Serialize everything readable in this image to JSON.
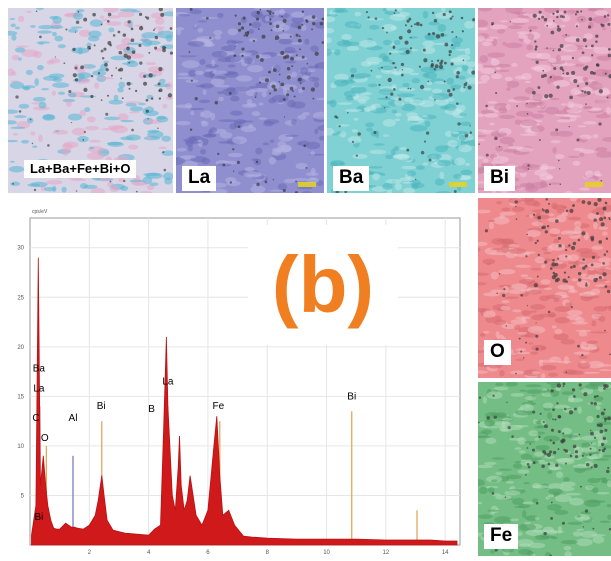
{
  "panel_label": "(b)",
  "maps": [
    {
      "id": "all",
      "label": "La+Ba+Fe+Bi+O",
      "base": "#d8d6e6",
      "accent": "#56b6d4",
      "accent2": "#e6a6c6"
    },
    {
      "id": "la",
      "label": "La",
      "base": "#8f8fcf",
      "accent": "#6c6cb8",
      "accent2": "#b4b2e2"
    },
    {
      "id": "ba",
      "label": "Ba",
      "base": "#7fd1d4",
      "accent": "#4cb6bc",
      "accent2": "#bde8e8"
    },
    {
      "id": "bi",
      "label": "Bi",
      "base": "#e3a3bf",
      "accent": "#cc7fa0",
      "accent2": "#f2cadc"
    },
    {
      "id": "o",
      "label": "O",
      "base": "#ee8a8e",
      "accent": "#d76a70",
      "accent2": "#f6bcbf"
    },
    {
      "id": "fe",
      "label": "Fe",
      "base": "#74bd84",
      "accent": "#4e9e62",
      "accent2": "#aedcb8"
    }
  ],
  "chart_data": {
    "type": "line",
    "x_ticks": [
      "2",
      "4",
      "6",
      "8",
      "10",
      "12",
      "14"
    ],
    "y_ticks": [
      "5",
      "10",
      "15",
      "20",
      "25",
      "30"
    ],
    "y_unit": "cps/eV",
    "xlim": [
      0,
      14.5
    ],
    "ylim": [
      0,
      33
    ],
    "series": [
      {
        "x": [
          0.05,
          0.2,
          0.28,
          0.35,
          0.45,
          0.53,
          0.6,
          0.7,
          0.8,
          0.9,
          1.0,
          1.2,
          1.4,
          1.5,
          1.6,
          1.8,
          2.0,
          2.2,
          2.3,
          2.42,
          2.5,
          2.6,
          2.8,
          3.2,
          3.6,
          4.0,
          4.1,
          4.2,
          4.4,
          4.5,
          4.6,
          4.65,
          4.8,
          4.9,
          5.0,
          5.04,
          5.1,
          5.2,
          5.3,
          5.4,
          5.6,
          5.8,
          6.0,
          6.2,
          6.3,
          6.4,
          6.5,
          6.7,
          6.9,
          7.2,
          7.5,
          8.0,
          9.0,
          10.0,
          11.0,
          12.0,
          13.0,
          13.5,
          14.0,
          14.4
        ],
        "y": [
          1,
          4,
          29,
          6,
          9,
          6,
          4,
          2.5,
          1.7,
          1.6,
          1.6,
          2.2,
          1.8,
          1.8,
          1.7,
          1.6,
          2.0,
          3.0,
          4.5,
          7.0,
          5.0,
          2.5,
          1.5,
          1.2,
          1.1,
          1.0,
          1.3,
          1.6,
          2.0,
          11.0,
          21.0,
          14.0,
          5.0,
          3.5,
          8.0,
          11.0,
          6.0,
          3.5,
          4.5,
          7.0,
          3.0,
          2.0,
          3.5,
          10.0,
          13.0,
          7.0,
          3.0,
          3.5,
          2.0,
          0.9,
          0.8,
          0.7,
          0.6,
          0.6,
          0.6,
          0.5,
          0.5,
          0.5,
          0.4,
          0.4
        ]
      }
    ],
    "peak_labels": [
      {
        "text": "Ba",
        "x": 0.3,
        "y": 17.5
      },
      {
        "text": "La",
        "x": 0.3,
        "y": 15.5
      },
      {
        "text": "C",
        "x": 0.2,
        "y": 12.5
      },
      {
        "text": "O",
        "x": 0.5,
        "y": 10.5
      },
      {
        "text": "Bi",
        "x": 0.3,
        "y": 2.5
      },
      {
        "text": "Al",
        "x": 1.45,
        "y": 12.5
      },
      {
        "text": "Bi",
        "x": 2.4,
        "y": 13.7
      },
      {
        "text": "B",
        "x": 4.1,
        "y": 13.4
      },
      {
        "text": "La",
        "x": 4.65,
        "y": 16.2
      },
      {
        "text": "Fe",
        "x": 6.35,
        "y": 13.7
      },
      {
        "text": "Bi",
        "x": 10.85,
        "y": 14.7
      }
    ],
    "marker_lines": [
      {
        "x": 0.35,
        "y": 14,
        "color": "#d8d8d8"
      },
      {
        "x": 0.55,
        "y": 10,
        "color": "#e0a050"
      },
      {
        "x": 1.45,
        "y": 9,
        "color": "#7070c0"
      },
      {
        "x": 2.42,
        "y": 12.5,
        "color": "#e0a050"
      },
      {
        "x": 4.65,
        "y": 14,
        "color": "#e0a050"
      },
      {
        "x": 6.4,
        "y": 12.5,
        "color": "#e0a050"
      },
      {
        "x": 10.85,
        "y": 13.5,
        "color": "#e0a050"
      },
      {
        "x": 13.05,
        "y": 3.5,
        "color": "#e0a050"
      }
    ]
  }
}
